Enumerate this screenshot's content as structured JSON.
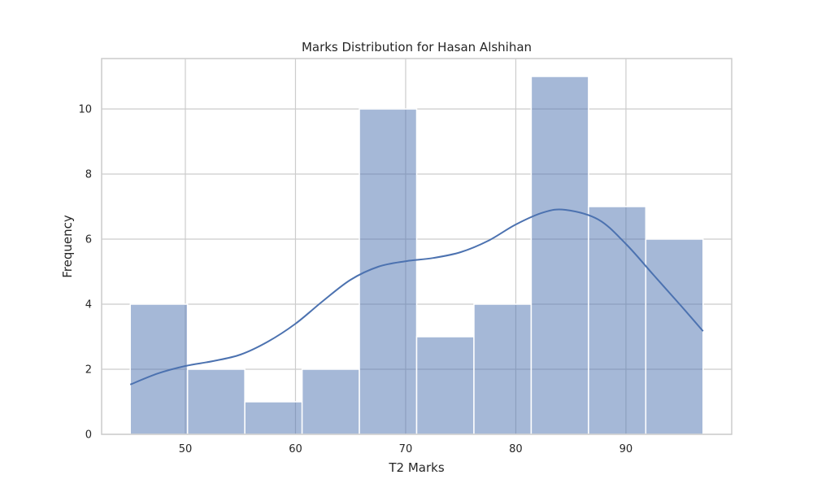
{
  "chart_data": {
    "type": "bar",
    "title": "Marks Distribution for Hasan Alshihan",
    "xlabel": "T2 Marks",
    "ylabel": "Frequency",
    "xlim": [
      42.4,
      99.6
    ],
    "ylim": [
      0,
      11.55
    ],
    "xticks": [
      50,
      60,
      70,
      80,
      90
    ],
    "yticks": [
      0,
      2,
      4,
      6,
      8,
      10
    ],
    "grid": true,
    "bins": [
      {
        "x0": 45.0,
        "x1": 50.2,
        "count": 4
      },
      {
        "x0": 50.2,
        "x1": 55.4,
        "count": 2
      },
      {
        "x0": 55.4,
        "x1": 60.6,
        "count": 1
      },
      {
        "x0": 60.6,
        "x1": 65.8,
        "count": 2
      },
      {
        "x0": 65.8,
        "x1": 71.0,
        "count": 10
      },
      {
        "x0": 71.0,
        "x1": 76.2,
        "count": 3
      },
      {
        "x0": 76.2,
        "x1": 81.4,
        "count": 4
      },
      {
        "x0": 81.4,
        "x1": 86.6,
        "count": 11
      },
      {
        "x0": 86.6,
        "x1": 91.8,
        "count": 7
      },
      {
        "x0": 91.8,
        "x1": 97.0,
        "count": 6
      }
    ],
    "kde": {
      "x": [
        45,
        47.5,
        50,
        52.5,
        55,
        57.5,
        60,
        62.5,
        65,
        67.5,
        70,
        72.5,
        75,
        77.5,
        80,
        82.5,
        84.5,
        87.5,
        90,
        92.5,
        95,
        97
      ],
      "y": [
        1.53,
        1.87,
        2.1,
        2.25,
        2.45,
        2.85,
        3.4,
        4.1,
        4.75,
        5.15,
        5.32,
        5.42,
        5.6,
        5.95,
        6.45,
        6.82,
        6.9,
        6.6,
        5.85,
        4.9,
        3.95,
        3.17
      ]
    },
    "colors": {
      "bar_fill": "#4c72b0",
      "bar_fill_opacity": 0.5,
      "bar_edge": "#ffffff",
      "kde_line": "#4c72b0",
      "grid": "#cccccc",
      "frame": "#cccccc",
      "background": "#ffffff"
    }
  }
}
